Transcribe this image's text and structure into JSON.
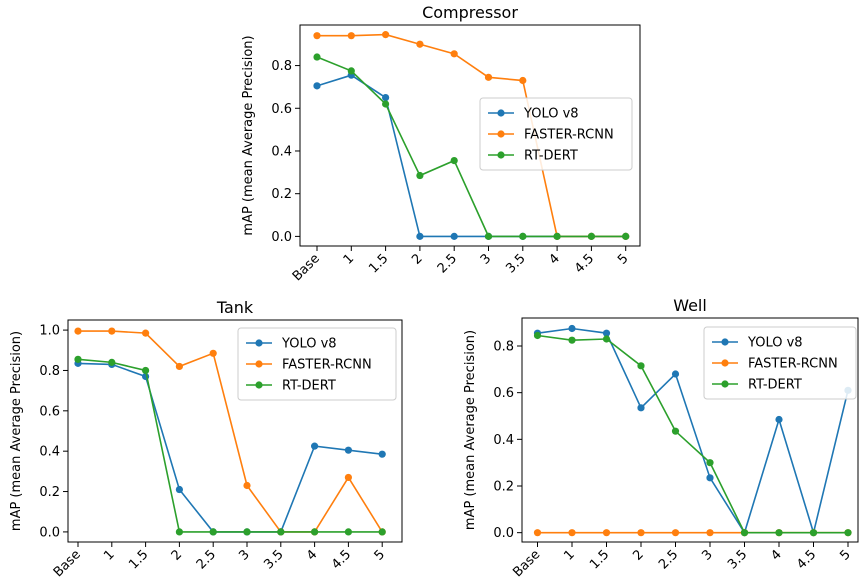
{
  "chart_data": [
    {
      "type": "line",
      "title": "Compressor",
      "ylabel": "mAP (mean Average Precision)",
      "xlabel": "",
      "categories": [
        "Base",
        "1",
        "1.5",
        "2",
        "2.5",
        "3",
        "3.5",
        "4",
        "4.5",
        "5"
      ],
      "ylim": [
        -0.045,
        0.99
      ],
      "yticks": [
        "0.0",
        "0.2",
        "0.4",
        "0.6",
        "0.8"
      ],
      "grid": false,
      "legend": "center-right",
      "series": [
        {
          "name": "YOLO v8",
          "color": "#1f77b4",
          "values": [
            0.705,
            0.755,
            0.65,
            0.0,
            0.0,
            0.0,
            0.0,
            0.0,
            0.0,
            0.0
          ]
        },
        {
          "name": "FASTER-RCNN",
          "color": "#ff7f0e",
          "values": [
            0.94,
            0.94,
            0.945,
            0.9,
            0.855,
            0.745,
            0.73,
            0.0,
            0.0,
            0.0
          ]
        },
        {
          "name": "RT-DERT",
          "color": "#2ca02c",
          "values": [
            0.84,
            0.775,
            0.62,
            0.285,
            0.355,
            0.0,
            0.0,
            0.0,
            0.0,
            0.0
          ]
        }
      ]
    },
    {
      "type": "line",
      "title": "Tank",
      "ylabel": "mAP (mean Average Precision)",
      "xlabel": "",
      "categories": [
        "Base",
        "1",
        "1.5",
        "2",
        "2.5",
        "3",
        "3.5",
        "4",
        "4.5",
        "5"
      ],
      "ylim": [
        -0.05,
        1.05
      ],
      "yticks": [
        "0.0",
        "0.2",
        "0.4",
        "0.6",
        "0.8",
        "1.0"
      ],
      "grid": false,
      "legend": "top-right",
      "series": [
        {
          "name": "YOLO v8",
          "color": "#1f77b4",
          "values": [
            0.835,
            0.83,
            0.77,
            0.21,
            0.0,
            0.0,
            0.0,
            0.425,
            0.405,
            0.385
          ]
        },
        {
          "name": "FASTER-RCNN",
          "color": "#ff7f0e",
          "values": [
            0.995,
            0.995,
            0.985,
            0.82,
            0.885,
            0.23,
            0.0,
            0.0,
            0.27,
            0.0
          ]
        },
        {
          "name": "RT-DERT",
          "color": "#2ca02c",
          "values": [
            0.855,
            0.84,
            0.8,
            0.0,
            0.0,
            0.0,
            0.0,
            0.0,
            0.0,
            0.0
          ]
        }
      ]
    },
    {
      "type": "line",
      "title": "Well",
      "ylabel": "mAP (mean Average Precision)",
      "xlabel": "",
      "categories": [
        "Base",
        "1",
        "1.5",
        "2",
        "2.5",
        "3",
        "3.5",
        "4",
        "4.5",
        "5"
      ],
      "ylim": [
        -0.04,
        0.92
      ],
      "yticks": [
        "0.0",
        "0.2",
        "0.4",
        "0.6",
        "0.8"
      ],
      "grid": false,
      "legend": "top-right",
      "series": [
        {
          "name": "YOLO v8",
          "color": "#1f77b4",
          "values": [
            0.855,
            0.875,
            0.855,
            0.535,
            0.68,
            0.235,
            0.0,
            0.485,
            0.0,
            0.61
          ]
        },
        {
          "name": "FASTER-RCNN",
          "color": "#ff7f0e",
          "values": [
            0.0,
            0.0,
            0.0,
            0.0,
            0.0,
            0.0,
            0.0,
            0.0,
            0.0,
            0.0
          ]
        },
        {
          "name": "RT-DERT",
          "color": "#2ca02c",
          "values": [
            0.845,
            0.825,
            0.83,
            0.715,
            0.435,
            0.3,
            0.0,
            0.0,
            0.0,
            0.0
          ]
        }
      ]
    }
  ]
}
